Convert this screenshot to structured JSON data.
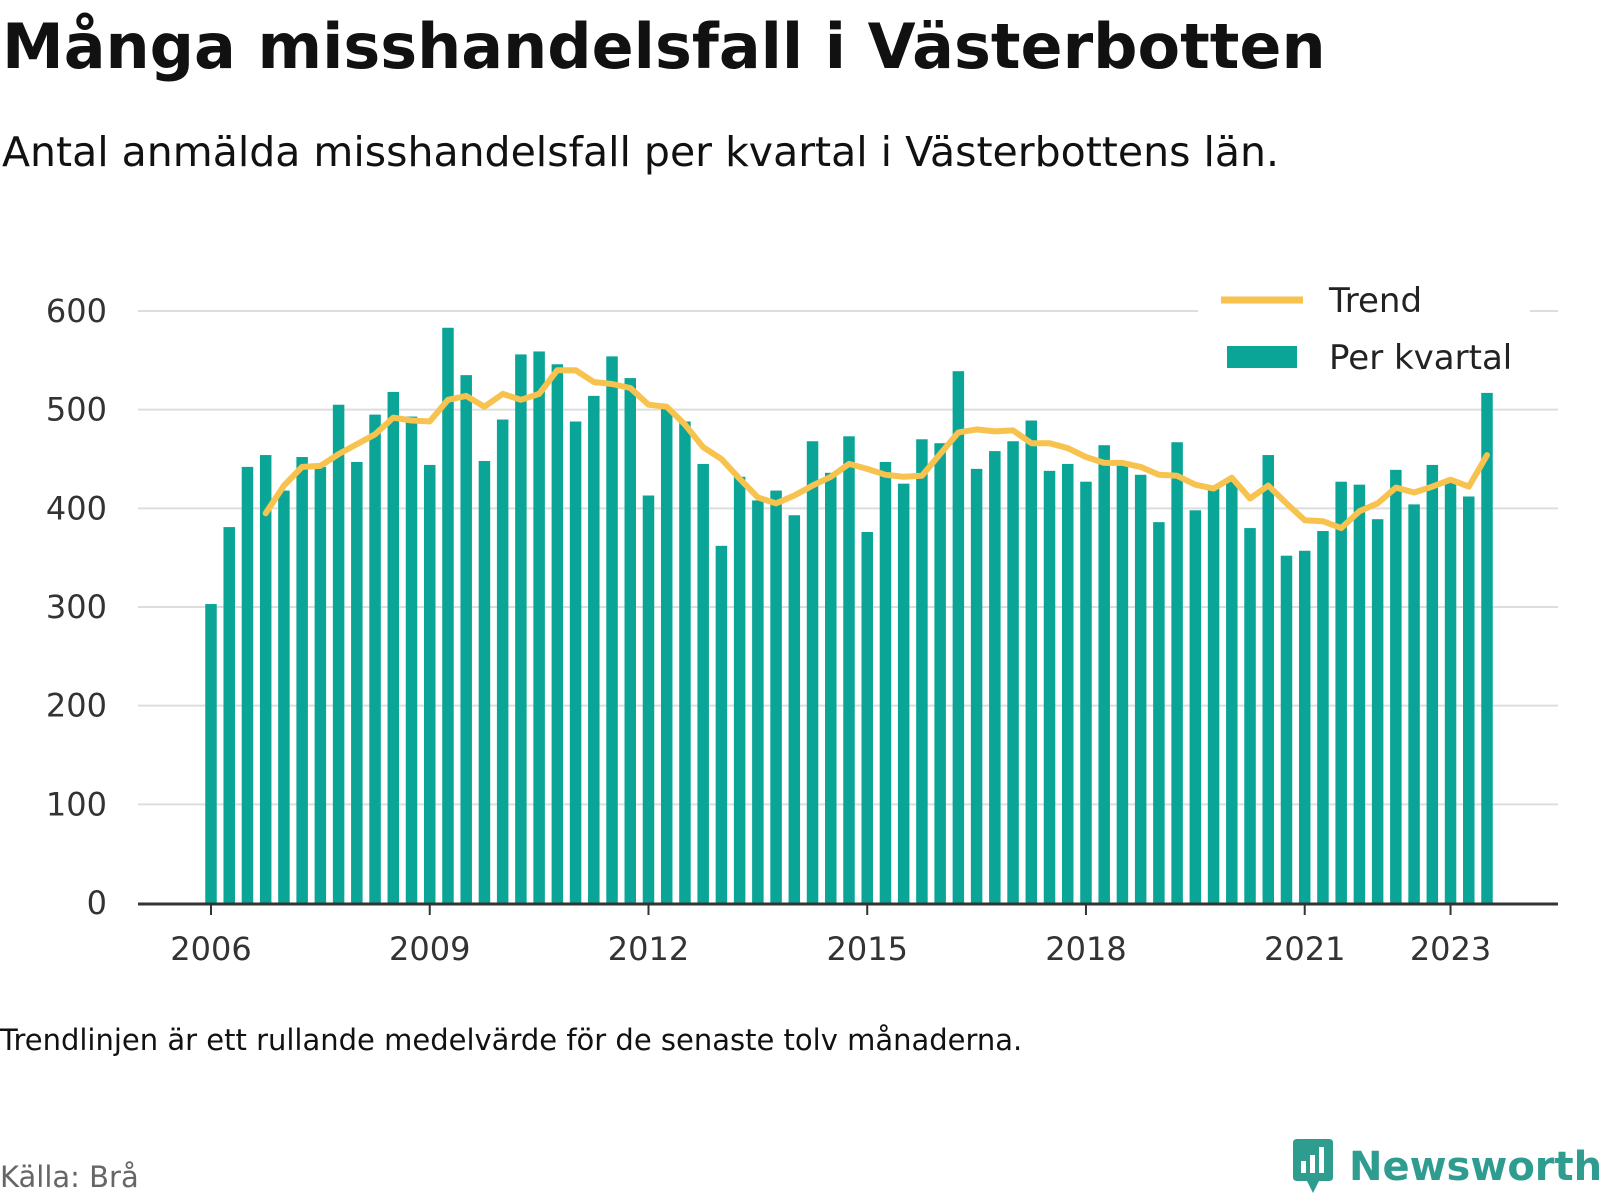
{
  "header": {
    "title": "Många misshandelsfall i Västerbotten",
    "subtitle": "Antal anmälda misshandelsfall per kvartal i Västerbottens län."
  },
  "footer": {
    "note": "Trendlinjen är ett rullande medelvärde för de senaste tolv månaderna.",
    "source": "Källa: Brå",
    "brand": "Newsworthy"
  },
  "colors": {
    "bar": "#0aa597",
    "trend": "#f7c24e",
    "grid": "#dddddd",
    "axis": "#333333",
    "brand": "#2f9c90"
  },
  "chart_data": {
    "type": "bar",
    "legend": {
      "placement": "top-right",
      "entries": [
        {
          "name": "Trend",
          "kind": "line"
        },
        {
          "name": "Per kvartal",
          "kind": "bar"
        }
      ]
    },
    "ylim": [
      0,
      600
    ],
    "yticks": [
      "0",
      "100",
      "200",
      "300",
      "400",
      "500",
      "600"
    ],
    "xticks": [
      "2006",
      "2009",
      "2012",
      "2015",
      "2018",
      "2021",
      "2023"
    ],
    "grid": true,
    "first_period": "2006 Q1",
    "series": [
      {
        "name": "Per kvartal",
        "type": "bar",
        "values": [
          303,
          381,
          442,
          454,
          418,
          452,
          442,
          505,
          447,
          495,
          518,
          493,
          444,
          583,
          535,
          448,
          490,
          556,
          559,
          546,
          488,
          514,
          554,
          532,
          413,
          502,
          488,
          445,
          362,
          432,
          408,
          418,
          393,
          468,
          436,
          473,
          376,
          447,
          425,
          470,
          466,
          539,
          440,
          458,
          468,
          489,
          438,
          445,
          427,
          464,
          445,
          434,
          386,
          467,
          398,
          423,
          427,
          380,
          454,
          352,
          357,
          377,
          427,
          424,
          389,
          439,
          404,
          444,
          427,
          412,
          517
        ]
      },
      {
        "name": "Trend",
        "type": "line",
        "values": [
          null,
          null,
          null,
          395,
          423,
          442,
          443,
          455,
          465,
          475,
          492,
          489,
          488,
          510,
          514,
          503,
          516,
          510,
          516,
          540,
          540,
          528,
          526,
          522,
          505,
          503,
          485,
          462,
          450,
          430,
          411,
          405,
          413,
          423,
          432,
          445,
          440,
          434,
          432,
          433,
          455,
          477,
          480,
          478,
          479,
          466,
          466,
          461,
          452,
          446,
          446,
          442,
          434,
          433,
          424,
          420,
          431,
          410,
          423,
          405,
          388,
          387,
          380,
          397,
          405,
          421,
          416,
          422,
          429,
          422,
          454
        ]
      }
    ]
  }
}
